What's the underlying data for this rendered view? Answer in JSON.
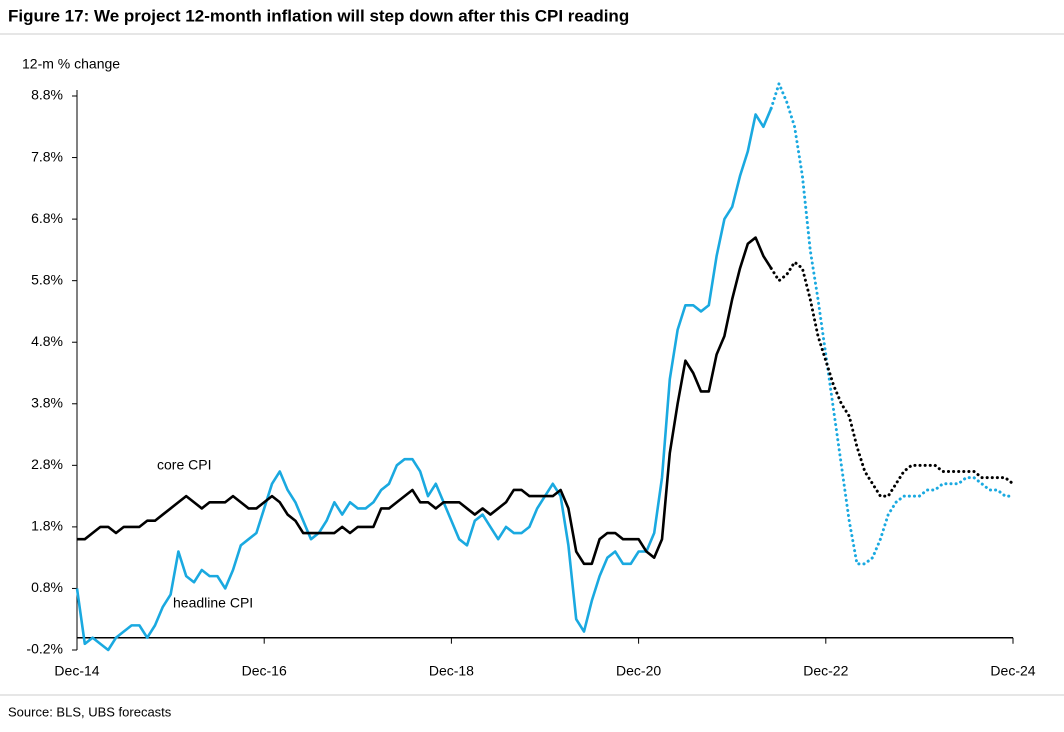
{
  "chart_data": {
    "type": "line",
    "title": "Figure 17: We project 12-month inflation will step down after this CPI reading",
    "y_axis_label": "12-m % change",
    "source": "Source: BLS, UBS forecasts",
    "categories": [
      "Dec-14",
      null,
      null,
      null,
      null,
      null,
      null,
      null,
      null,
      null,
      null,
      null,
      null,
      null,
      null,
      null,
      null,
      null,
      null,
      null,
      null,
      null,
      null,
      null,
      "Dec-16",
      null,
      null,
      null,
      null,
      null,
      null,
      null,
      null,
      null,
      null,
      null,
      null,
      null,
      null,
      null,
      null,
      null,
      null,
      null,
      null,
      null,
      null,
      null,
      "Dec-18",
      null,
      null,
      null,
      null,
      null,
      null,
      null,
      null,
      null,
      null,
      null,
      null,
      null,
      null,
      null,
      null,
      null,
      null,
      null,
      null,
      null,
      null,
      null,
      "Dec-20",
      null,
      null,
      null,
      null,
      null,
      null,
      null,
      null,
      null,
      null,
      null,
      null,
      null,
      null,
      null,
      null,
      null,
      null,
      null,
      null,
      null,
      null,
      null,
      "Dec-22",
      null,
      null,
      null,
      null,
      null,
      null,
      null,
      null,
      null,
      null,
      null,
      null,
      null,
      null,
      null,
      null,
      null,
      null,
      null,
      null,
      null,
      null,
      null,
      "Dec-24"
    ],
    "series": [
      {
        "name": "headline CPI",
        "color": "#1aa9e0",
        "values": [
          0.8,
          -0.1,
          0.0,
          -0.1,
          -0.2,
          0.0,
          0.1,
          0.2,
          0.2,
          0.0,
          0.2,
          0.5,
          0.7,
          1.4,
          1.0,
          0.9,
          1.1,
          1.0,
          1.0,
          0.8,
          1.1,
          1.5,
          1.6,
          1.7,
          2.1,
          2.5,
          2.7,
          2.4,
          2.2,
          1.9,
          1.6,
          1.7,
          1.9,
          2.2,
          2.0,
          2.2,
          2.1,
          2.1,
          2.2,
          2.4,
          2.5,
          2.8,
          2.9,
          2.9,
          2.7,
          2.3,
          2.5,
          2.2,
          1.9,
          1.6,
          1.5,
          1.9,
          2.0,
          1.8,
          1.6,
          1.8,
          1.7,
          1.7,
          1.8,
          2.1,
          2.3,
          2.5,
          2.3,
          1.5,
          0.3,
          0.1,
          0.6,
          1.0,
          1.3,
          1.4,
          1.2,
          1.2,
          1.4,
          1.4,
          1.7,
          2.6,
          4.2,
          5.0,
          5.4,
          5.4,
          5.3,
          5.4,
          6.2,
          6.8,
          7.0,
          7.5,
          7.9,
          8.5,
          8.3,
          8.6,
          null,
          null,
          null,
          null,
          null,
          null,
          null,
          null,
          null,
          null,
          null,
          null,
          null,
          null,
          null,
          null,
          null,
          null,
          null,
          null,
          null,
          null,
          null,
          null,
          null,
          null,
          null,
          null,
          null,
          null,
          null
        ],
        "forecast": [
          null,
          null,
          null,
          null,
          null,
          null,
          null,
          null,
          null,
          null,
          null,
          null,
          null,
          null,
          null,
          null,
          null,
          null,
          null,
          null,
          null,
          null,
          null,
          null,
          null,
          null,
          null,
          null,
          null,
          null,
          null,
          null,
          null,
          null,
          null,
          null,
          null,
          null,
          null,
          null,
          null,
          null,
          null,
          null,
          null,
          null,
          null,
          null,
          null,
          null,
          null,
          null,
          null,
          null,
          null,
          null,
          null,
          null,
          null,
          null,
          null,
          null,
          null,
          null,
          null,
          null,
          null,
          null,
          null,
          null,
          null,
          null,
          null,
          null,
          null,
          null,
          null,
          null,
          null,
          null,
          null,
          null,
          null,
          null,
          null,
          null,
          null,
          null,
          null,
          8.6,
          9.0,
          8.7,
          8.3,
          7.5,
          6.3,
          5.5,
          4.6,
          3.7,
          2.8,
          1.9,
          1.2,
          1.2,
          1.3,
          1.6,
          2.0,
          2.2,
          2.3,
          2.3,
          2.3,
          2.4,
          2.4,
          2.5,
          2.5,
          2.5,
          2.6,
          2.6,
          2.5,
          2.4,
          2.4,
          2.3,
          2.3
        ]
      },
      {
        "name": "core CPI",
        "color": "#000000",
        "values": [
          1.6,
          1.6,
          1.7,
          1.8,
          1.8,
          1.7,
          1.8,
          1.8,
          1.8,
          1.9,
          1.9,
          2.0,
          2.1,
          2.2,
          2.3,
          2.2,
          2.1,
          2.2,
          2.2,
          2.2,
          2.3,
          2.2,
          2.1,
          2.1,
          2.2,
          2.3,
          2.2,
          2.0,
          1.9,
          1.7,
          1.7,
          1.7,
          1.7,
          1.7,
          1.8,
          1.7,
          1.8,
          1.8,
          1.8,
          2.1,
          2.1,
          2.2,
          2.3,
          2.4,
          2.2,
          2.2,
          2.1,
          2.2,
          2.2,
          2.2,
          2.1,
          2.0,
          2.1,
          2.0,
          2.1,
          2.2,
          2.4,
          2.4,
          2.3,
          2.3,
          2.3,
          2.3,
          2.4,
          2.1,
          1.4,
          1.2,
          1.2,
          1.6,
          1.7,
          1.7,
          1.6,
          1.6,
          1.6,
          1.4,
          1.3,
          1.6,
          3.0,
          3.8,
          4.5,
          4.3,
          4.0,
          4.0,
          4.6,
          4.9,
          5.5,
          6.0,
          6.4,
          6.5,
          6.2,
          6.0,
          null,
          null,
          null,
          null,
          null,
          null,
          null,
          null,
          null,
          null,
          null,
          null,
          null,
          null,
          null,
          null,
          null,
          null,
          null,
          null,
          null,
          null,
          null,
          null,
          null,
          null,
          null,
          null,
          null,
          null,
          null
        ],
        "forecast": [
          null,
          null,
          null,
          null,
          null,
          null,
          null,
          null,
          null,
          null,
          null,
          null,
          null,
          null,
          null,
          null,
          null,
          null,
          null,
          null,
          null,
          null,
          null,
          null,
          null,
          null,
          null,
          null,
          null,
          null,
          null,
          null,
          null,
          null,
          null,
          null,
          null,
          null,
          null,
          null,
          null,
          null,
          null,
          null,
          null,
          null,
          null,
          null,
          null,
          null,
          null,
          null,
          null,
          null,
          null,
          null,
          null,
          null,
          null,
          null,
          null,
          null,
          null,
          null,
          null,
          null,
          null,
          null,
          null,
          null,
          null,
          null,
          null,
          null,
          null,
          null,
          null,
          null,
          null,
          null,
          null,
          null,
          null,
          null,
          null,
          null,
          null,
          null,
          null,
          6.0,
          5.8,
          5.9,
          6.1,
          6.0,
          5.5,
          4.9,
          4.5,
          4.1,
          3.8,
          3.6,
          3.1,
          2.7,
          2.5,
          2.3,
          2.3,
          2.5,
          2.7,
          2.8,
          2.8,
          2.8,
          2.8,
          2.7,
          2.7,
          2.7,
          2.7,
          2.7,
          2.6,
          2.6,
          2.6,
          2.6,
          2.5
        ]
      }
    ],
    "ylim": [
      -0.2,
      8.8
    ],
    "yticks": [
      {
        "value": -0.2,
        "label": "-0.2%"
      },
      {
        "value": 0.8,
        "label": "0.8%"
      },
      {
        "value": 1.8,
        "label": "1.8%"
      },
      {
        "value": 2.8,
        "label": "2.8%"
      },
      {
        "value": 3.8,
        "label": "3.8%"
      },
      {
        "value": 4.8,
        "label": "4.8%"
      },
      {
        "value": 5.8,
        "label": "5.8%"
      },
      {
        "value": 6.8,
        "label": "6.8%"
      },
      {
        "value": 7.8,
        "label": "7.8%"
      },
      {
        "value": 8.8,
        "label": "8.8%"
      }
    ],
    "xaxis_crosses": 0,
    "grid": false
  }
}
